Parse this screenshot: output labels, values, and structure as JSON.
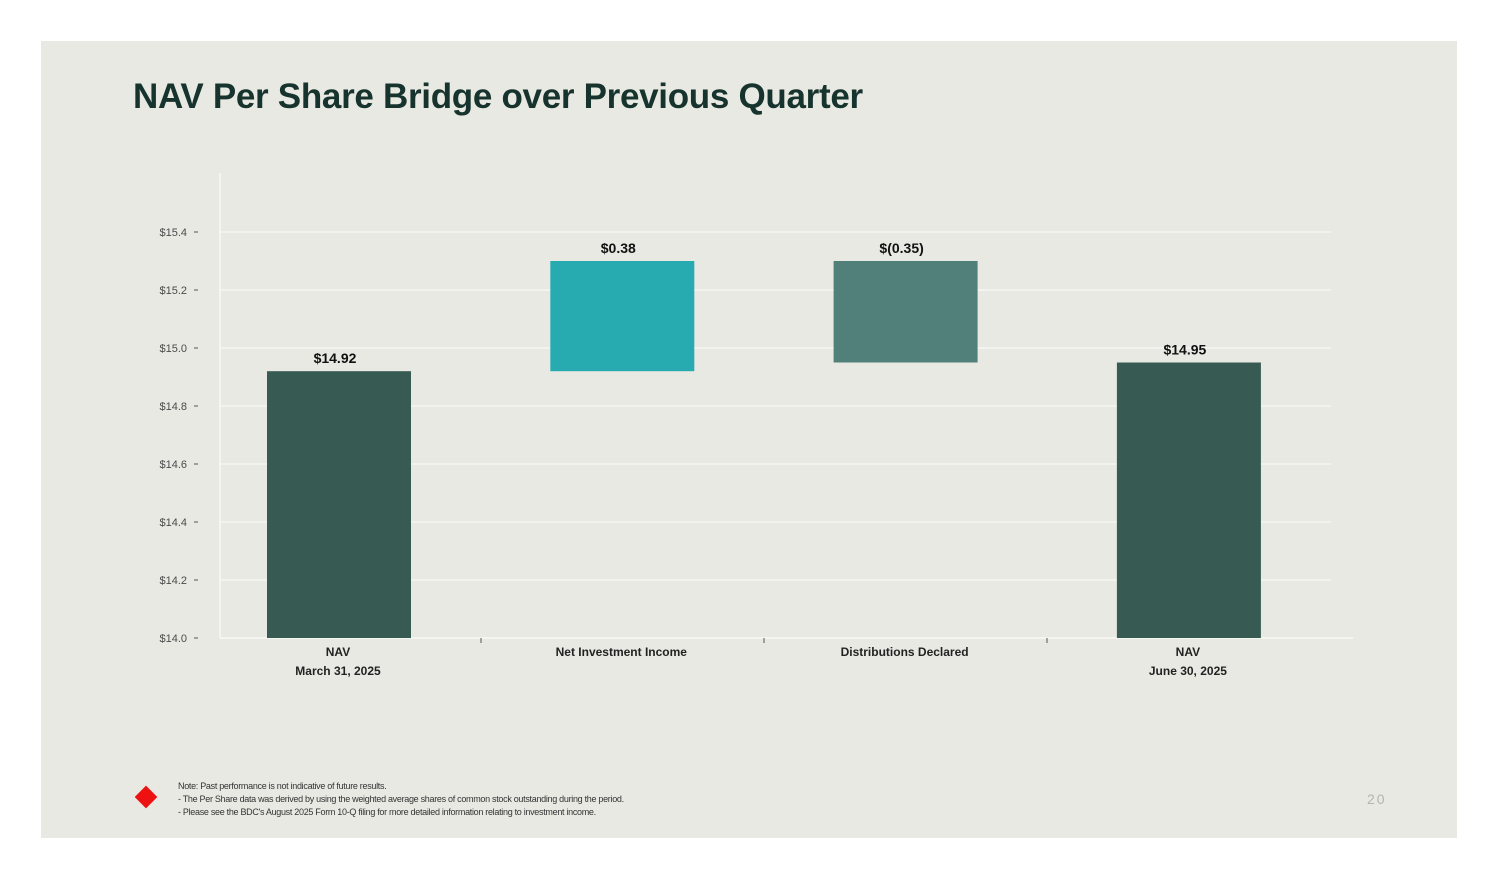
{
  "slide": {
    "title": "NAV Per Share Bridge over Previous Quarter",
    "page_number": "20",
    "notes": [
      "Note: Past performance is not indicative of future results.",
      "- The Per Share data was derived by using the weighted average shares of common stock outstanding during the period.",
      "- Please see the BDC's August 2025 Form 10-Q filing for more detailed information relating to investment income."
    ]
  },
  "chart_data": {
    "type": "bar",
    "subtype": "waterfall",
    "categories": [
      [
        "NAV",
        "March 31, 2025"
      ],
      [
        "Net Investment Income"
      ],
      [
        "Distributions Declared"
      ],
      [
        "NAV",
        "June 30, 2025"
      ]
    ],
    "bars": [
      {
        "start": 14.0,
        "end": 14.92,
        "label": "$14.92",
        "color": "#375a52"
      },
      {
        "start": 14.92,
        "end": 15.3,
        "label": "$0.38",
        "color": "#28abb0"
      },
      {
        "start": 14.95,
        "end": 15.3,
        "label": "$(0.35)",
        "color": "#508079"
      },
      {
        "start": 14.0,
        "end": 14.95,
        "label": "$14.95",
        "color": "#375a52"
      }
    ],
    "yticks": [
      14.0,
      14.2,
      14.4,
      14.6,
      14.8,
      15.0,
      15.2,
      15.4
    ],
    "ytick_labels": [
      "$14.0",
      "$14.2",
      "$14.4",
      "$14.6",
      "$14.8",
      "$15.0",
      "$15.2",
      "$15.4"
    ],
    "ylim": [
      14.0,
      15.6
    ],
    "grid": true,
    "legend": "none"
  }
}
